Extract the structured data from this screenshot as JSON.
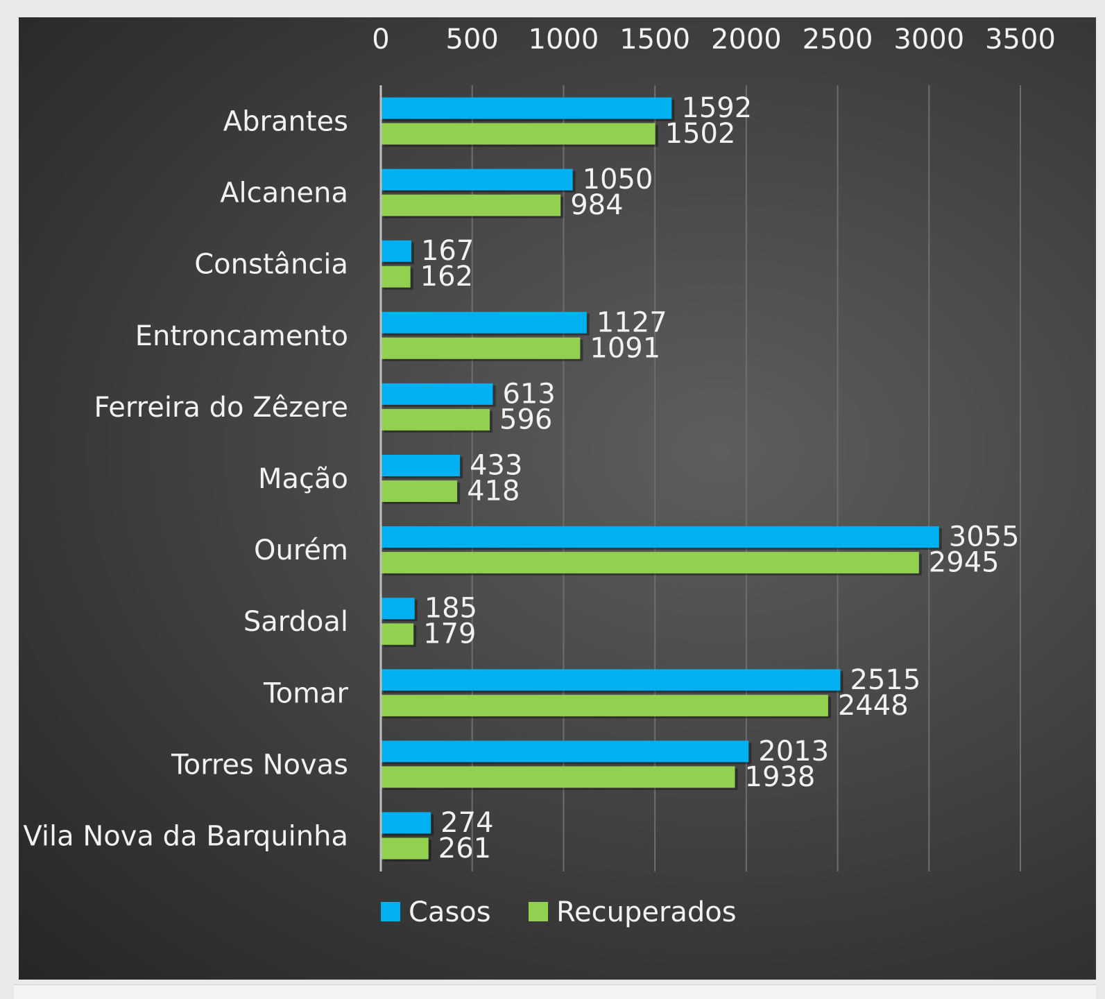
{
  "chart_data": {
    "type": "bar",
    "orientation": "horizontal",
    "categories": [
      "Abrantes",
      "Alcanena",
      "Constância",
      "Entroncamento",
      "Ferreira do Zêzere",
      "Mação",
      "Ourém",
      "Sardoal",
      "Tomar",
      "Torres Novas",
      "Vila Nova da Barquinha"
    ],
    "series": [
      {
        "name": "Casos",
        "color": "#00b0f0",
        "values": [
          1592,
          1050,
          167,
          1127,
          613,
          433,
          3055,
          185,
          2515,
          2013,
          274
        ]
      },
      {
        "name": "Recuperados",
        "color": "#92d050",
        "values": [
          1502,
          984,
          162,
          1091,
          596,
          418,
          2945,
          179,
          2448,
          1938,
          261
        ]
      }
    ],
    "xlim": [
      0,
      3500
    ],
    "xticks": [
      0,
      500,
      1000,
      1500,
      2000,
      2500,
      3000,
      3500
    ],
    "x_axis_position": "top",
    "grid": true,
    "legend": "bottom",
    "data_labels": true,
    "background": "dark gradient"
  }
}
